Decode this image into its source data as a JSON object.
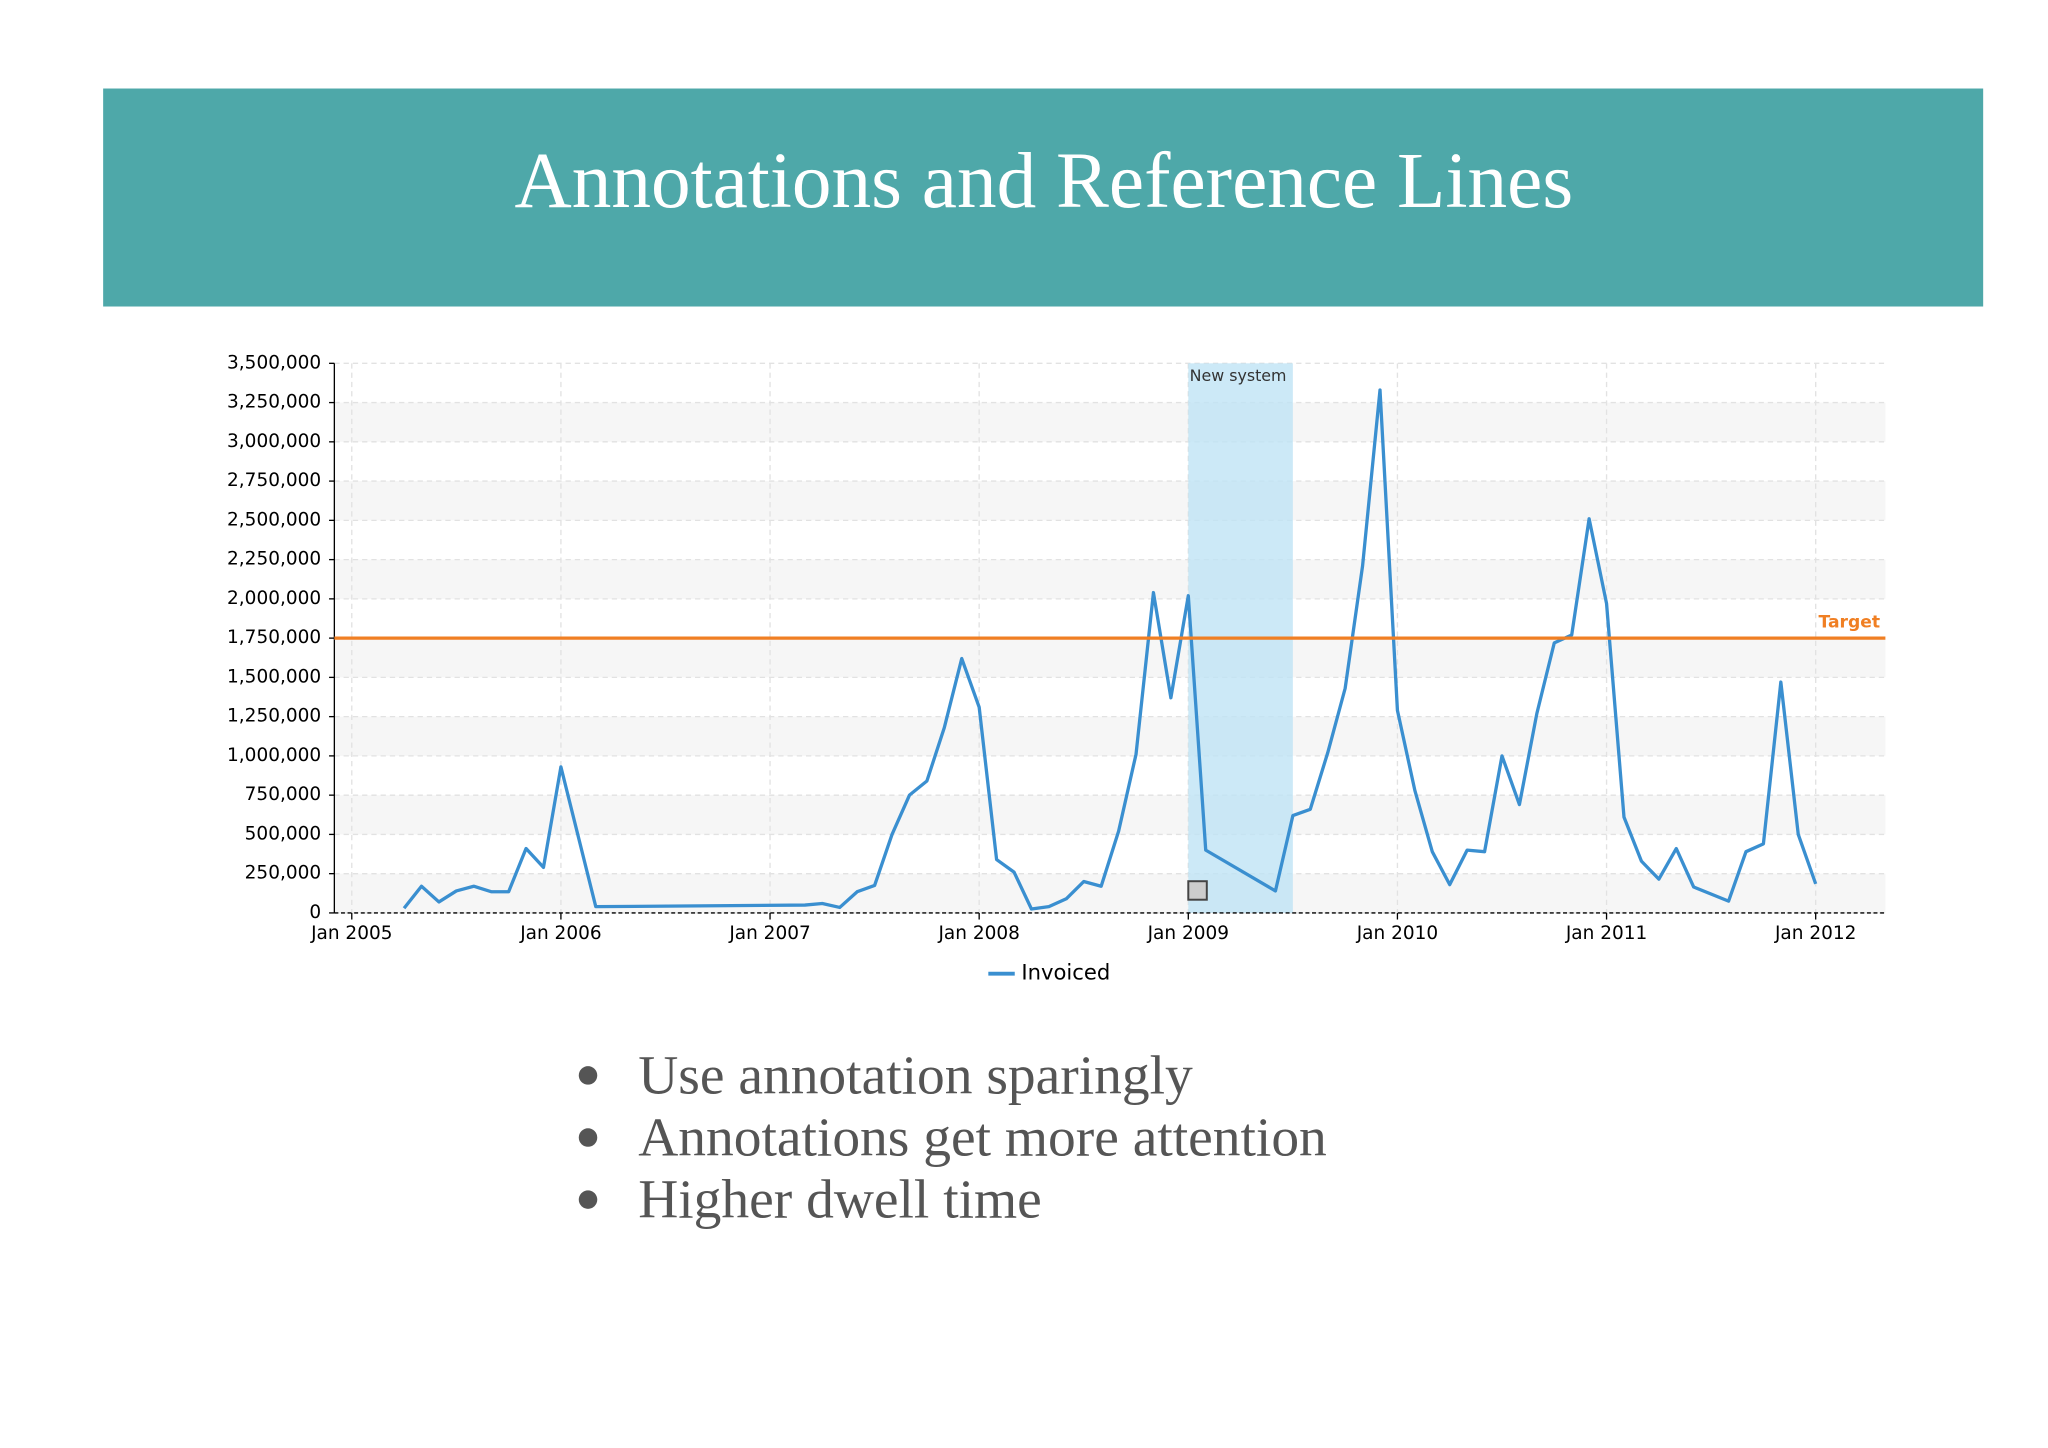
{
  "header": {
    "title": "Annotations and Reference Lines"
  },
  "chart_data": {
    "type": "line",
    "x": [
      "2005-04",
      "2005-05",
      "2005-06",
      "2005-07",
      "2005-08",
      "2005-09",
      "2005-10",
      "2005-11",
      "2005-12",
      "2006-01",
      "2006-03",
      "2007-03",
      "2007-04",
      "2007-05",
      "2007-06",
      "2007-07",
      "2007-08",
      "2007-09",
      "2007-10",
      "2007-11",
      "2007-12",
      "2008-01",
      "2008-02",
      "2008-03",
      "2008-04",
      "2008-05",
      "2008-06",
      "2008-07",
      "2008-08",
      "2008-09",
      "2008-10",
      "2008-11",
      "2008-12",
      "2009-01",
      "2009-02",
      "2009-06",
      "2009-07",
      "2009-08",
      "2009-09",
      "2009-10",
      "2009-11",
      "2009-12",
      "2010-01",
      "2010-02",
      "2010-03",
      "2010-04",
      "2010-05",
      "2010-06",
      "2010-07",
      "2010-08",
      "2010-09",
      "2010-10",
      "2010-11",
      "2010-12",
      "2011-01",
      "2011-02",
      "2011-03",
      "2011-04",
      "2011-05",
      "2011-06",
      "2011-08",
      "2011-09",
      "2011-10",
      "2011-11",
      "2011-12",
      "2012-01"
    ],
    "series": [
      {
        "name": "Invoiced",
        "color": "#3a8fd0",
        "values": [
          30000,
          170000,
          70000,
          140000,
          170000,
          135000,
          135000,
          410000,
          290000,
          930000,
          40000,
          50000,
          60000,
          35000,
          135000,
          175000,
          500000,
          750000,
          840000,
          1180000,
          1620000,
          1310000,
          340000,
          260000,
          25000,
          40000,
          90000,
          200000,
          170000,
          520000,
          1010000,
          2040000,
          1370000,
          2020000,
          400000,
          140000,
          620000,
          660000,
          1020000,
          1430000,
          2210000,
          3330000,
          1290000,
          780000,
          390000,
          180000,
          400000,
          390000,
          1000000,
          690000,
          1270000,
          1720000,
          1770000,
          2510000,
          1970000,
          610000,
          330000,
          215000,
          410000,
          165000,
          75000,
          390000,
          440000,
          1470000,
          500000,
          185000
        ]
      }
    ],
    "xlim": [
      "2004-12",
      "2012-05"
    ],
    "xticks": [
      {
        "value": "2005-01",
        "label": "Jan 2005"
      },
      {
        "value": "2006-01",
        "label": "Jan 2006"
      },
      {
        "value": "2007-01",
        "label": "Jan 2007"
      },
      {
        "value": "2008-01",
        "label": "Jan 2008"
      },
      {
        "value": "2009-01",
        "label": "Jan 2009"
      },
      {
        "value": "2010-01",
        "label": "Jan 2010"
      },
      {
        "value": "2011-01",
        "label": "Jan 2011"
      },
      {
        "value": "2012-01",
        "label": "Jan 2012"
      }
    ],
    "ylim": [
      0,
      3500000
    ],
    "yticks": [
      0,
      {
        "value": 250000,
        "label": "250,000"
      },
      {
        "value": 500000,
        "label": "500,000"
      },
      {
        "value": 750000,
        "label": "750,000"
      },
      {
        "value": 1000000,
        "label": "1,000,000"
      },
      {
        "value": 1250000,
        "label": "1,250,000"
      },
      {
        "value": 1500000,
        "label": "1,500,000"
      },
      {
        "value": 1750000,
        "label": "1,750,000"
      },
      {
        "value": 2000000,
        "label": "2,000,000"
      },
      {
        "value": 2250000,
        "label": "2,250,000"
      },
      {
        "value": 2500000,
        "label": "2,500,000"
      },
      {
        "value": 2750000,
        "label": "2,750,000"
      },
      {
        "value": 3000000,
        "label": "3,000,000"
      },
      {
        "value": 3250000,
        "label": "3,250,000"
      },
      {
        "value": 3500000,
        "label": "3,500,000"
      }
    ],
    "grid": true,
    "reference_lines": [
      {
        "value": 1750000,
        "label": "Target",
        "color": "#f07f23"
      }
    ],
    "bands": [
      {
        "start": "2009-01",
        "end": "2009-07",
        "label": "New system",
        "color": "#bfe4f5"
      }
    ],
    "legend": "bottom"
  },
  "bullets": [
    "Use annotation sparingly",
    "Annotations get more attention",
    "Higher dwell time"
  ]
}
